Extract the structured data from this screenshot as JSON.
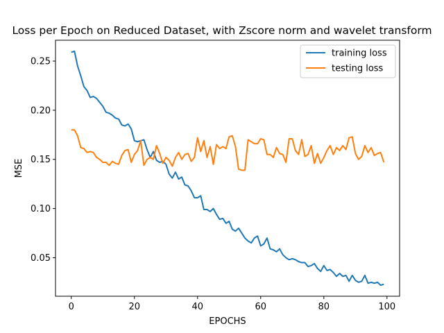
{
  "chart_data": {
    "type": "line",
    "title": "Loss per Epoch on Reduced Dataset, with Zscore norm and wavelet transform",
    "xlabel": "EPOCHS",
    "ylabel": "MSE",
    "xlim": [
      -5,
      104
    ],
    "ylim": [
      0.0108,
      0.2712
    ],
    "xticks": [
      0,
      20,
      40,
      60,
      80,
      100
    ],
    "yticks": [
      0.05,
      0.1,
      0.15,
      0.2,
      0.25
    ],
    "ytick_labels": [
      "0.05",
      "0.10",
      "0.15",
      "0.20",
      "0.25"
    ],
    "legend_position": "top-right",
    "grid": false,
    "x": [
      0,
      1,
      2,
      3,
      4,
      5,
      6,
      7,
      8,
      9,
      10,
      11,
      12,
      13,
      14,
      15,
      16,
      17,
      18,
      19,
      20,
      21,
      22,
      23,
      24,
      25,
      26,
      27,
      28,
      29,
      30,
      31,
      32,
      33,
      34,
      35,
      36,
      37,
      38,
      39,
      40,
      41,
      42,
      43,
      44,
      45,
      46,
      47,
      48,
      49,
      50,
      51,
      52,
      53,
      54,
      55,
      56,
      57,
      58,
      59,
      60,
      61,
      62,
      63,
      64,
      65,
      66,
      67,
      68,
      69,
      70,
      71,
      72,
      73,
      74,
      75,
      76,
      77,
      78,
      79,
      80,
      81,
      82,
      83,
      84,
      85,
      86,
      87,
      88,
      89,
      90,
      91,
      92,
      93,
      94,
      95,
      96,
      97,
      98,
      99
    ],
    "series": [
      {
        "name": "training loss",
        "color": "#1f77b4",
        "values": [
          0.259,
          0.26,
          0.245,
          0.235,
          0.224,
          0.22,
          0.213,
          0.214,
          0.212,
          0.208,
          0.204,
          0.198,
          0.197,
          0.195,
          0.192,
          0.191,
          0.185,
          0.184,
          0.186,
          0.181,
          0.169,
          0.168,
          0.169,
          0.17,
          0.16,
          0.152,
          0.158,
          0.149,
          0.147,
          0.148,
          0.145,
          0.135,
          0.131,
          0.137,
          0.13,
          0.132,
          0.124,
          0.123,
          0.118,
          0.111,
          0.111,
          0.113,
          0.099,
          0.099,
          0.097,
          0.1,
          0.094,
          0.089,
          0.09,
          0.085,
          0.087,
          0.079,
          0.077,
          0.08,
          0.075,
          0.07,
          0.067,
          0.065,
          0.07,
          0.072,
          0.062,
          0.064,
          0.07,
          0.059,
          0.058,
          0.056,
          0.059,
          0.053,
          0.05,
          0.048,
          0.049,
          0.048,
          0.046,
          0.045,
          0.045,
          0.041,
          0.042,
          0.044,
          0.039,
          0.036,
          0.042,
          0.037,
          0.038,
          0.035,
          0.031,
          0.034,
          0.031,
          0.032,
          0.026,
          0.032,
          0.027,
          0.025,
          0.026,
          0.032,
          0.024,
          0.025,
          0.024,
          0.025,
          0.022,
          0.023
        ]
      },
      {
        "name": "testing loss",
        "color": "#ff7f0e",
        "values": [
          0.18,
          0.18,
          0.174,
          0.162,
          0.161,
          0.157,
          0.158,
          0.157,
          0.152,
          0.15,
          0.147,
          0.147,
          0.144,
          0.148,
          0.146,
          0.145,
          0.154,
          0.159,
          0.16,
          0.147,
          0.155,
          0.159,
          0.169,
          0.144,
          0.15,
          0.152,
          0.15,
          0.164,
          0.156,
          0.146,
          0.152,
          0.149,
          0.143,
          0.152,
          0.157,
          0.15,
          0.155,
          0.156,
          0.148,
          0.152,
          0.172,
          0.158,
          0.169,
          0.152,
          0.163,
          0.145,
          0.165,
          0.161,
          0.163,
          0.161,
          0.173,
          0.174,
          0.163,
          0.14,
          0.139,
          0.139,
          0.17,
          0.168,
          0.166,
          0.166,
          0.171,
          0.17,
          0.155,
          0.155,
          0.152,
          0.162,
          0.156,
          0.155,
          0.147,
          0.171,
          0.171,
          0.159,
          0.155,
          0.17,
          0.153,
          0.155,
          0.164,
          0.146,
          0.156,
          0.146,
          0.152,
          0.159,
          0.164,
          0.155,
          0.162,
          0.159,
          0.164,
          0.16,
          0.172,
          0.173,
          0.156,
          0.15,
          0.153,
          0.164,
          0.157,
          0.162,
          0.154,
          0.156,
          0.157,
          0.147
        ]
      }
    ]
  }
}
